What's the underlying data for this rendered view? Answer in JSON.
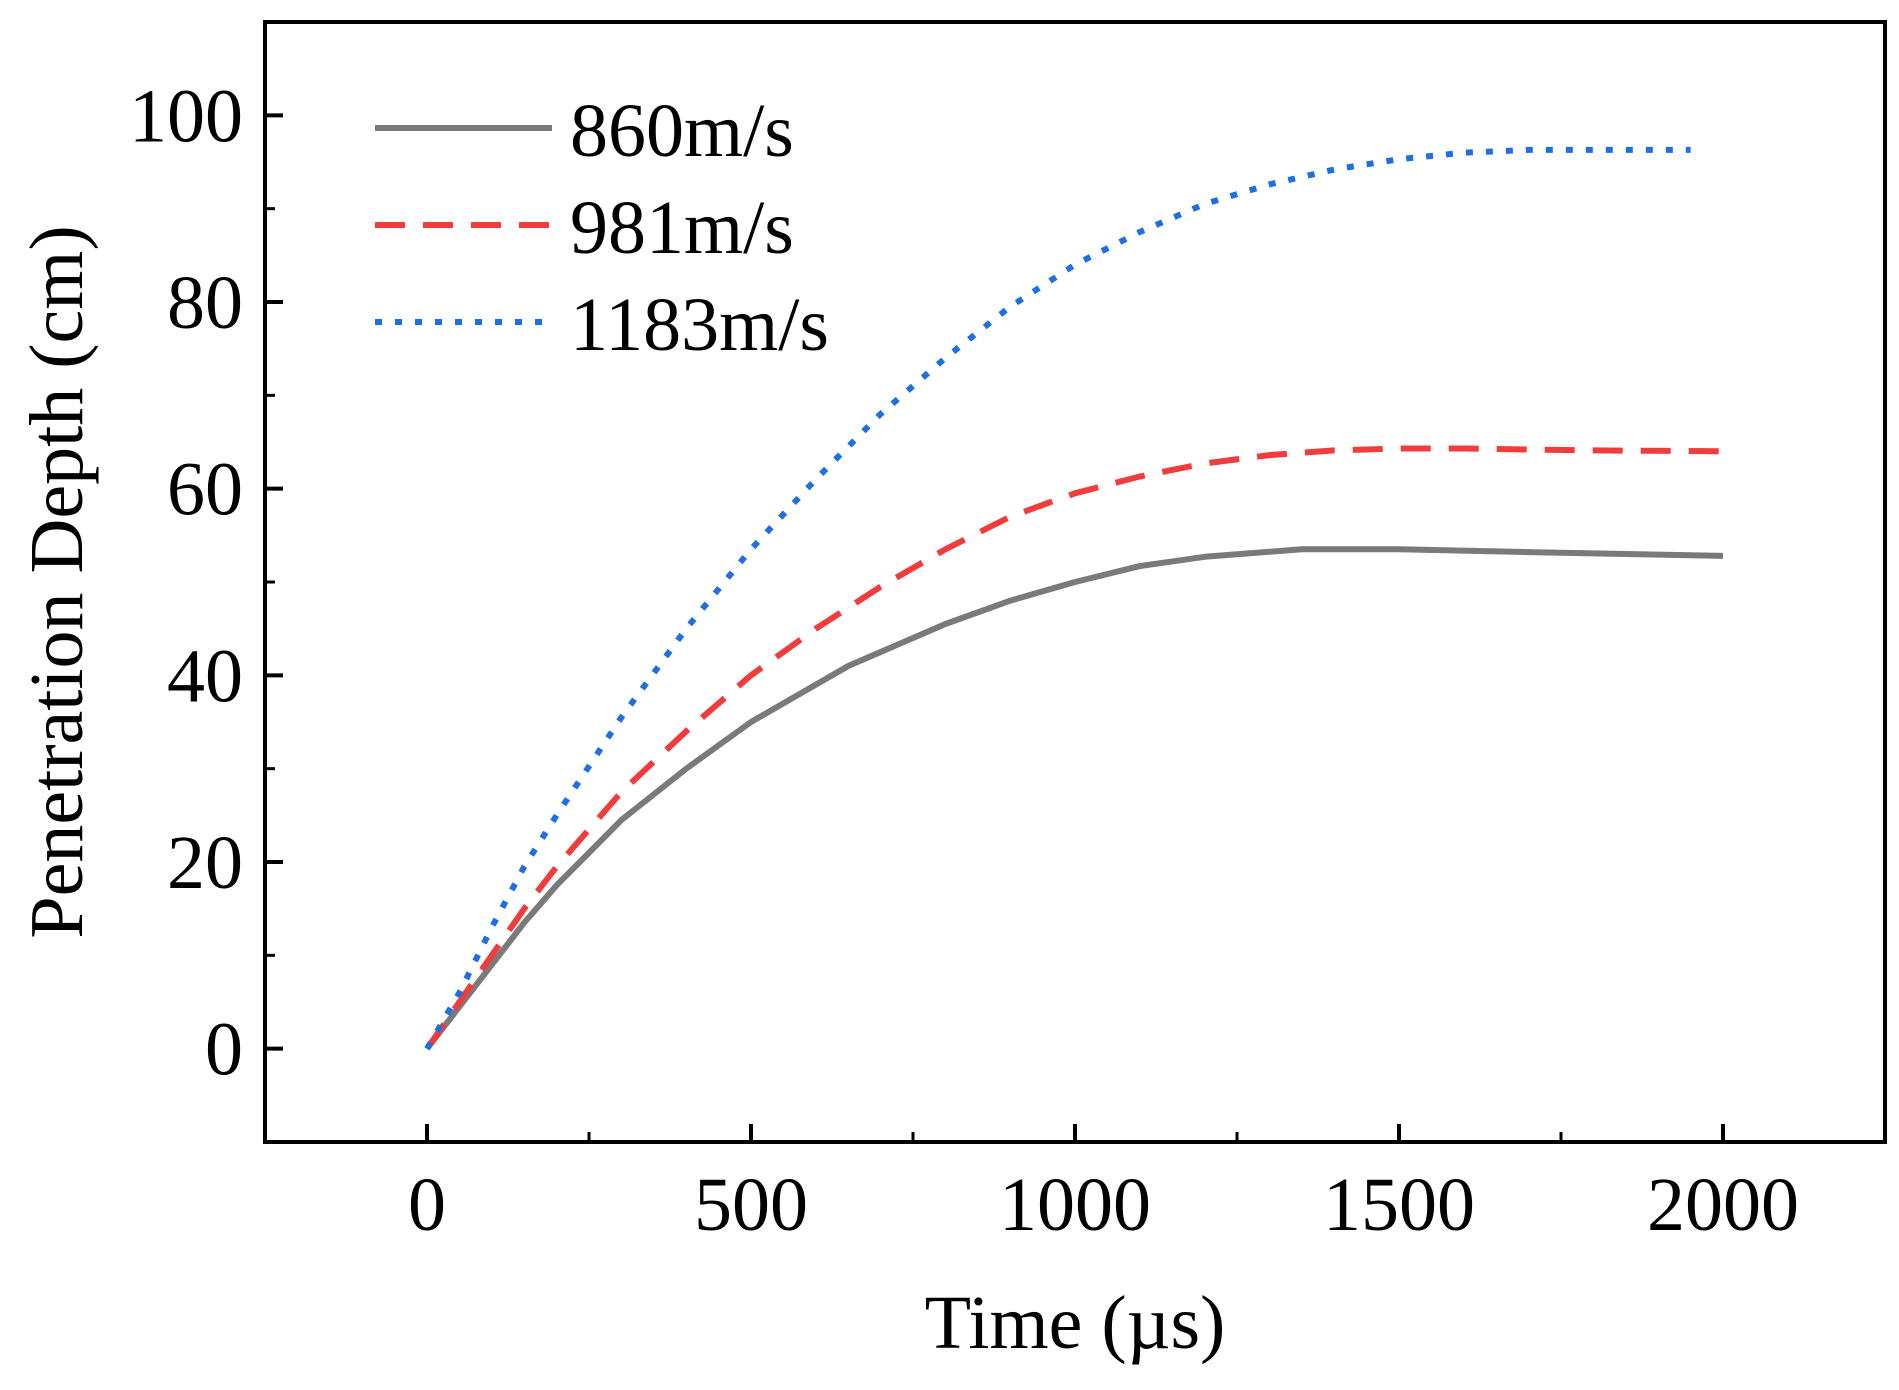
{
  "chart_data": {
    "type": "line",
    "title": "",
    "xlabel": "Time (µs)",
    "ylabel": "Penetration Depth (cm)",
    "xlim": [
      -250,
      2250
    ],
    "ylim": [
      -10,
      110
    ],
    "x_ticks": [
      0,
      500,
      1000,
      1500,
      2000
    ],
    "y_ticks": [
      0,
      20,
      40,
      60,
      80,
      100
    ],
    "x_tick_labels": [
      "0",
      "500",
      "1000",
      "1500",
      "2000"
    ],
    "y_tick_labels": [
      "0",
      "20",
      "40",
      "60",
      "80",
      "100"
    ],
    "grid": false,
    "legend_position": "top-left",
    "series": [
      {
        "name": "860m/s",
        "color": "#7a7a7a",
        "style": "solid",
        "x": [
          0,
          50,
          100,
          150,
          200,
          250,
          300,
          400,
          500,
          650,
          800,
          900,
          1000,
          1100,
          1200,
          1350,
          1500,
          1700,
          2000
        ],
        "y": [
          0,
          4.5,
          9,
          13.5,
          17.5,
          21,
          24.5,
          30,
          35,
          41,
          45.5,
          48,
          50,
          51.7,
          52.7,
          53.5,
          53.5,
          53.2,
          52.8
        ]
      },
      {
        "name": "981m/s",
        "color": "#f03c3c",
        "style": "dashed",
        "x": [
          0,
          50,
          100,
          150,
          200,
          300,
          400,
          500,
          600,
          700,
          800,
          900,
          1000,
          1100,
          1200,
          1300,
          1400,
          1500,
          1600,
          1700,
          1800,
          2000
        ],
        "y": [
          0,
          5,
          10,
          15,
          19.5,
          27.5,
          34,
          40,
          45,
          49.5,
          53.5,
          57,
          59.5,
          61.3,
          62.7,
          63.6,
          64.1,
          64.3,
          64.3,
          64.2,
          64.1,
          64.0
        ]
      },
      {
        "name": "1183m/s",
        "color": "#1f6fe0",
        "style": "dotted",
        "x": [
          0,
          50,
          100,
          150,
          200,
          300,
          400,
          500,
          600,
          700,
          800,
          900,
          1000,
          1100,
          1200,
          1300,
          1400,
          1500,
          1600,
          1700,
          1800,
          1950
        ],
        "y": [
          0,
          6,
          13,
          19.5,
          25,
          35.5,
          45,
          53.5,
          61,
          68,
          74,
          79.5,
          84,
          87.5,
          90.5,
          92.6,
          94.2,
          95.3,
          96,
          96.3,
          96.3,
          96.3
        ]
      }
    ]
  }
}
